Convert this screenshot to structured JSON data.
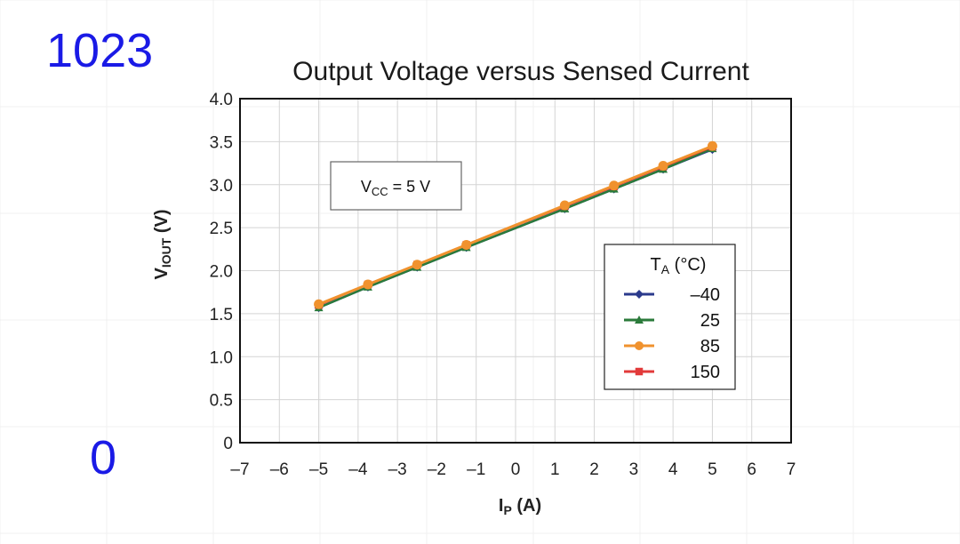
{
  "side_labels": {
    "top": "1023",
    "bottom": "0"
  },
  "colors": {
    "side_label": "#1a1ae6",
    "grid": "#d4d4d4",
    "frame": "#111111"
  },
  "chart_data": {
    "type": "line",
    "title": "Output Voltage versus Sensed Current",
    "xlabel": "I",
    "xlabel_sub": "P",
    "xlabel_unit": " (A)",
    "ylabel": "V",
    "ylabel_sub": "IOUT",
    "ylabel_unit": " (V)",
    "xlim": [
      -7,
      7
    ],
    "ylim": [
      0,
      4
    ],
    "x_ticks": [
      -7,
      -6,
      -5,
      -4,
      -3,
      -2,
      -1,
      0,
      1,
      2,
      3,
      4,
      5,
      6,
      7
    ],
    "x_tick_labels": [
      "–7",
      "–6",
      "–5",
      "–4",
      "–3",
      "–2",
      "–1",
      "0",
      "1",
      "2",
      "3",
      "4",
      "5",
      "6",
      "7"
    ],
    "y_ticks": [
      0,
      0.5,
      1.0,
      1.5,
      2.0,
      2.5,
      3.0,
      3.5,
      4.0
    ],
    "y_tick_labels": [
      "0",
      "0.5",
      "1.0",
      "1.5",
      "2.0",
      "2.5",
      "3.0",
      "3.5",
      "4.0"
    ],
    "grid": true,
    "annotation": {
      "main": "V",
      "sub": "CC",
      "rest": " = 5 V"
    },
    "legend": {
      "title_main": "T",
      "title_sub": "A",
      "title_rest": " (°C)",
      "placement": "right"
    },
    "x": [
      -5,
      -3.75,
      -2.5,
      -1.25,
      1.25,
      2.5,
      3.75,
      5
    ],
    "series": [
      {
        "name": "–40",
        "color": "#2b3a8c",
        "marker": "diamond",
        "values": [
          1.57,
          1.81,
          2.04,
          2.27,
          2.72,
          2.95,
          3.18,
          3.41
        ]
      },
      {
        "name": "25",
        "color": "#2a7a3a",
        "marker": "triangle",
        "values": [
          1.57,
          1.81,
          2.04,
          2.27,
          2.72,
          2.95,
          3.18,
          3.42
        ]
      },
      {
        "name": "150",
        "color": "#e23a3a",
        "marker": "square",
        "values": [
          1.6,
          1.84,
          2.07,
          2.3,
          2.75,
          2.98,
          3.21,
          3.44
        ]
      },
      {
        "name": "85",
        "color": "#f0922e",
        "marker": "circle",
        "values": [
          1.61,
          1.84,
          2.07,
          2.3,
          2.76,
          2.99,
          3.22,
          3.45
        ]
      }
    ],
    "legend_order": [
      "–40",
      "25",
      "85",
      "150"
    ]
  }
}
